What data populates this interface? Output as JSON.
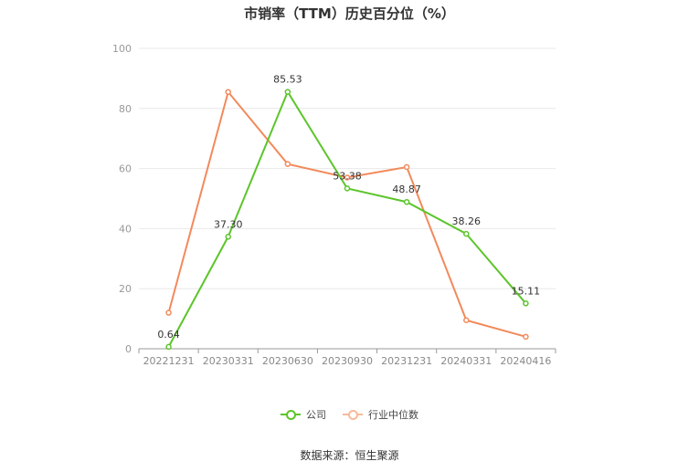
{
  "title": "市销率（TTM）历史百分位（%）",
  "source": "数据来源：恒生聚源",
  "colors": {
    "company": "#5cc52a",
    "industry": "#f28a5c",
    "grid": "#e8e8e8",
    "axis": "#999999"
  },
  "chart_data": {
    "type": "line",
    "title": "市销率（TTM）历史百分位（%）",
    "categories": [
      "20221231",
      "20230331",
      "20230630",
      "20230930",
      "20231231",
      "20240331",
      "20240416"
    ],
    "ylim": [
      0,
      100
    ],
    "yticks": [
      0,
      20,
      40,
      60,
      80,
      100
    ],
    "grid": true,
    "legend_position": "bottom-center",
    "series": [
      {
        "name": "公司",
        "values": [
          0.64,
          37.3,
          85.53,
          53.38,
          48.87,
          38.26,
          15.11
        ],
        "labels": [
          "0.64",
          "37.30",
          "85.53",
          "53.38",
          "48.87",
          "38.26",
          "15.11"
        ]
      },
      {
        "name": "行业中位数",
        "values": [
          12.0,
          85.5,
          61.5,
          57.0,
          60.5,
          9.5,
          4.0
        ]
      }
    ]
  }
}
